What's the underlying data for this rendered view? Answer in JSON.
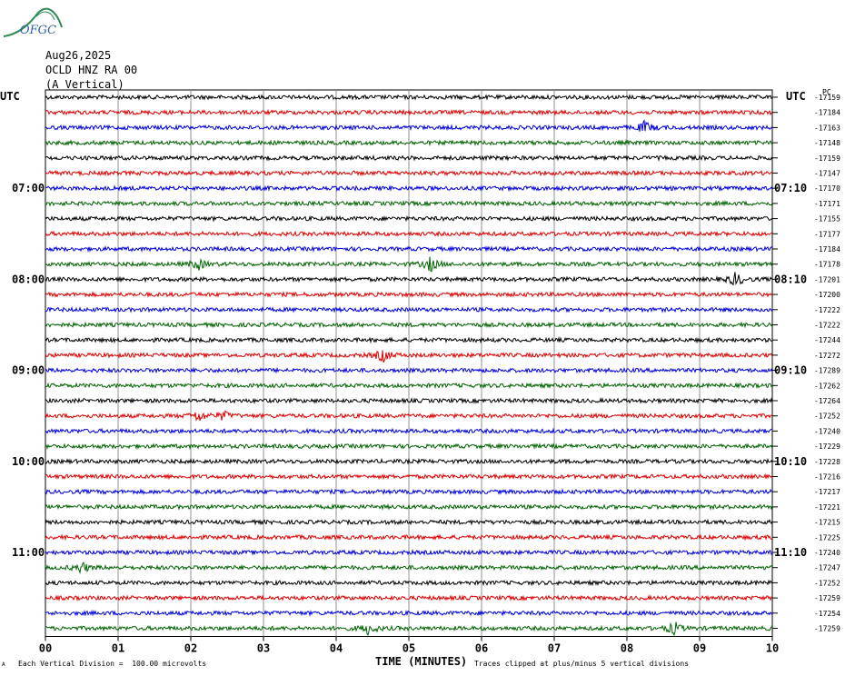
{
  "header": {
    "logo_text": "OFGC",
    "date": "Aug26,2025",
    "station": "OCLD HNZ RA 00",
    "component": "(A Vertical)",
    "left_tz": "UTC",
    "right_tz": "UTC",
    "right_top_label": "PC"
  },
  "footer": {
    "xlabel": "TIME (MINUTES)",
    "scale_note": "Each Vertical Division =  100.00 microvolts",
    "clip_note": "Traces clipped at plus/minus 5 vertical divisions",
    "corner_mark": "A"
  },
  "chart_data": {
    "type": "line",
    "title": "OCLD HNZ RA 00 (A Vertical)",
    "xlabel": "TIME (MINUTES)",
    "xlim": [
      0,
      10
    ],
    "x_ticks": [
      "00",
      "01",
      "02",
      "03",
      "04",
      "05",
      "06",
      "07",
      "08",
      "09",
      "10"
    ],
    "left_time_labels": [
      {
        "row": 6,
        "text": "07:00"
      },
      {
        "row": 12,
        "text": "08:00"
      },
      {
        "row": 18,
        "text": "09:00"
      },
      {
        "row": 24,
        "text": "10:00"
      },
      {
        "row": 30,
        "text": "11:00"
      }
    ],
    "right_time_labels": [
      {
        "row": 6,
        "text": "07:10"
      },
      {
        "row": 12,
        "text": "08:10"
      },
      {
        "row": 18,
        "text": "09:10"
      },
      {
        "row": 24,
        "text": "10:10"
      },
      {
        "row": 30,
        "text": "11:10"
      }
    ],
    "trace_colors": [
      "#000000",
      "#e00000",
      "#0000e0",
      "#006400"
    ],
    "trace_offsets": [
      "-17159",
      "-17184",
      "-17163",
      "-17148",
      "-17159",
      "-17147",
      "-17170",
      "-17171",
      "-17155",
      "-17177",
      "-17184",
      "-17178",
      "-17201",
      "-17200",
      "-17222",
      "-17222",
      "-17244",
      "-17272",
      "-17289",
      "-17262",
      "-17264",
      "-17252",
      "-17240",
      "-17229",
      "-17228",
      "-17216",
      "-17217",
      "-17221",
      "-17215",
      "-17225",
      "-17240",
      "-17247",
      "-17252",
      "-17259",
      "-17254",
      "-17259"
    ],
    "events": [
      {
        "row": 2,
        "minute": 8.25,
        "amp": 7
      },
      {
        "row": 11,
        "minute": 2.1,
        "amp": 6
      },
      {
        "row": 11,
        "minute": 5.3,
        "amp": 8
      },
      {
        "row": 12,
        "minute": 9.5,
        "amp": 8
      },
      {
        "row": 17,
        "minute": 4.65,
        "amp": 8
      },
      {
        "row": 21,
        "minute": 2.1,
        "amp": 6
      },
      {
        "row": 21,
        "minute": 2.45,
        "amp": 5
      },
      {
        "row": 31,
        "minute": 0.5,
        "amp": 6
      },
      {
        "row": 35,
        "minute": 4.45,
        "amp": 7
      },
      {
        "row": 35,
        "minute": 8.65,
        "amp": 7
      }
    ]
  }
}
